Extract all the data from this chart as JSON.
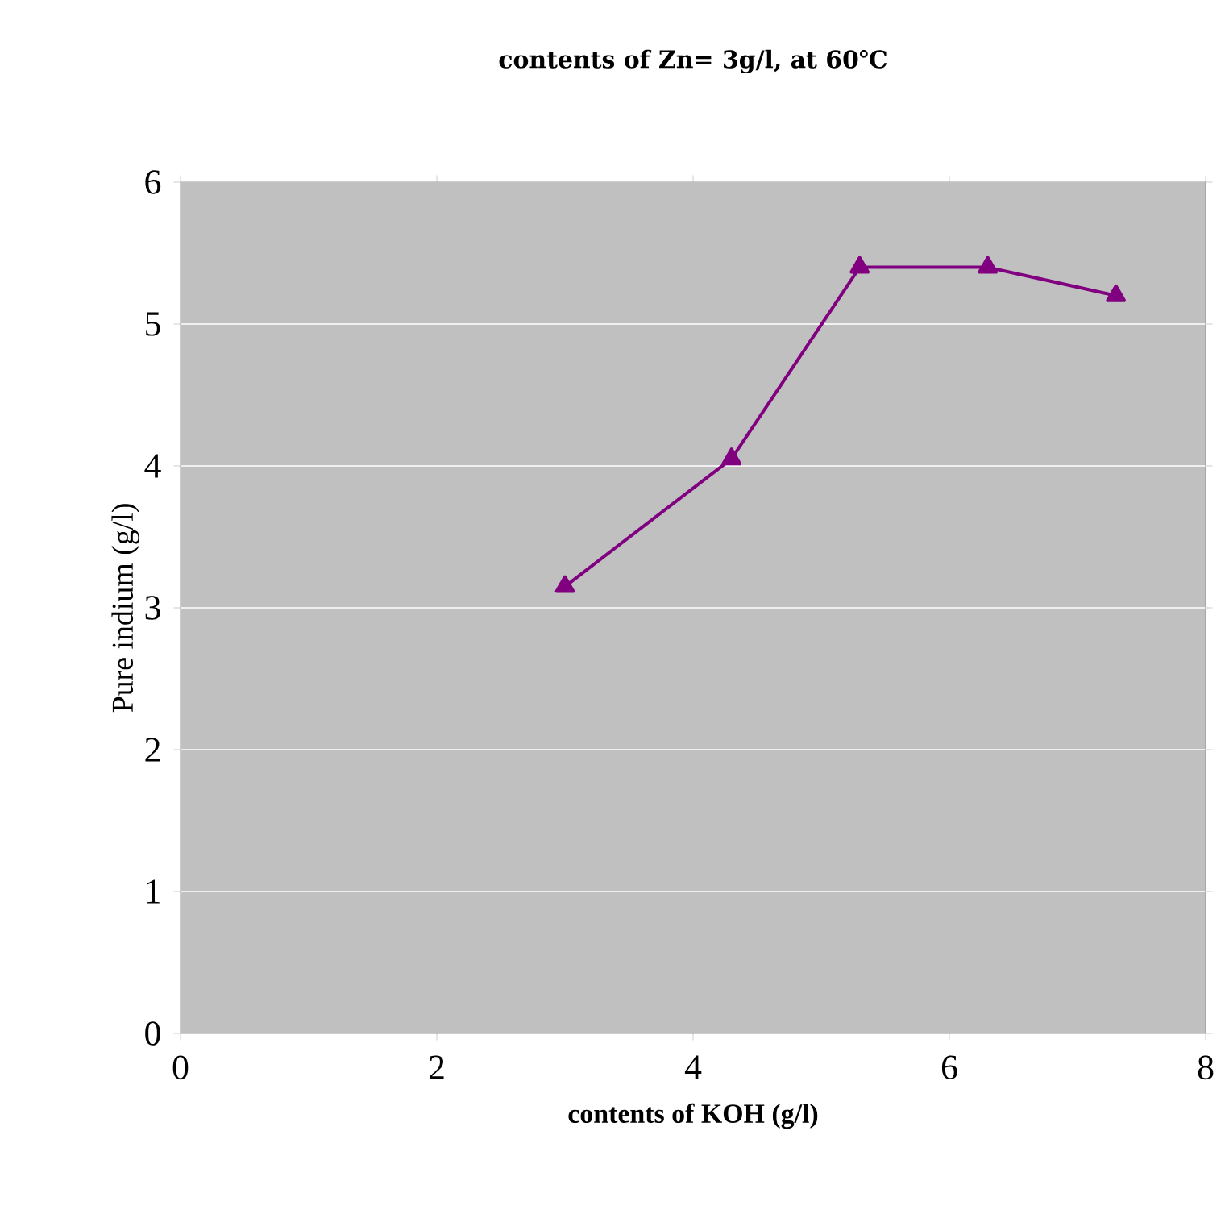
{
  "chart_data": {
    "type": "line",
    "title": "contents of Zn= 3g/l, at 60℃",
    "xlabel": "contents of KOH (g/l)",
    "ylabel": "Pure indium (g/l)",
    "x": [
      3.0,
      4.3,
      5.3,
      6.3,
      7.3
    ],
    "series": [
      {
        "color": "#800080",
        "values": [
          3.15,
          4.05,
          5.4,
          5.4,
          5.2
        ]
      }
    ],
    "xlim": [
      0,
      8
    ],
    "xticks": [
      0,
      2,
      4,
      6,
      8
    ],
    "ylim": [
      0,
      6
    ],
    "yticks": [
      0,
      1,
      2,
      3,
      4,
      5,
      6
    ],
    "grid": "y",
    "marker": "triangle",
    "line_style": "solid"
  }
}
